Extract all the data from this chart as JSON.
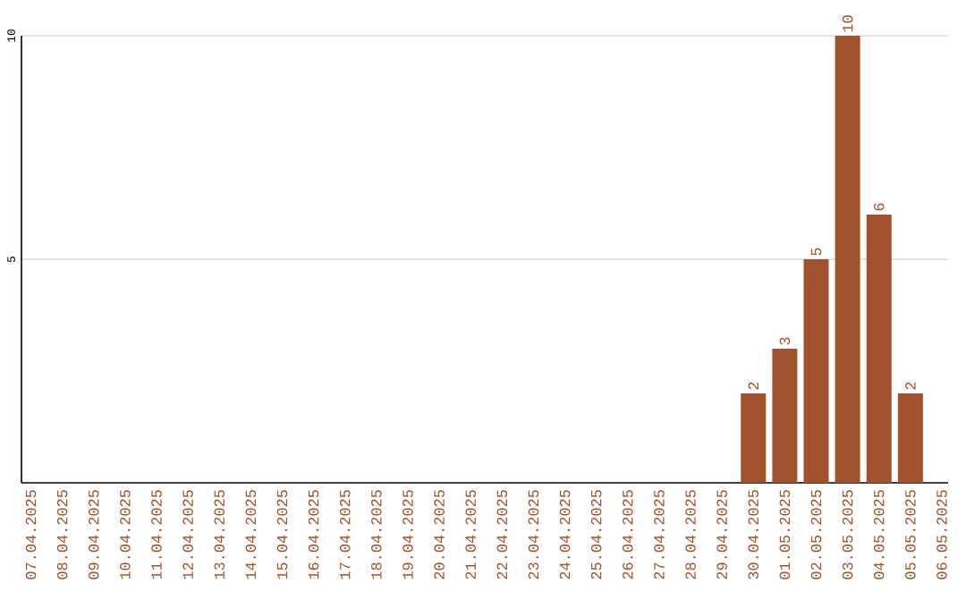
{
  "chart_data": {
    "type": "bar",
    "categories": [
      "07.04.2025",
      "08.04.2025",
      "09.04.2025",
      "10.04.2025",
      "11.04.2025",
      "12.04.2025",
      "13.04.2025",
      "14.04.2025",
      "15.04.2025",
      "16.04.2025",
      "17.04.2025",
      "18.04.2025",
      "19.04.2025",
      "20.04.2025",
      "21.04.2025",
      "22.04.2025",
      "23.04.2025",
      "24.04.2025",
      "25.04.2025",
      "26.04.2025",
      "27.04.2025",
      "28.04.2025",
      "29.04.2025",
      "30.04.2025",
      "01.05.2025",
      "02.05.2025",
      "03.05.2025",
      "04.05.2025",
      "05.05.2025",
      "06.05.2025"
    ],
    "values": [
      0,
      0,
      0,
      0,
      0,
      0,
      0,
      0,
      0,
      0,
      0,
      0,
      0,
      0,
      0,
      0,
      0,
      0,
      0,
      0,
      0,
      0,
      0,
      2,
      3,
      5,
      10,
      6,
      2,
      0
    ],
    "value_labels": [
      null,
      null,
      null,
      null,
      null,
      null,
      null,
      null,
      null,
      null,
      null,
      null,
      null,
      null,
      null,
      null,
      null,
      null,
      null,
      null,
      null,
      null,
      null,
      "2",
      "3",
      "5",
      "10",
      "6",
      "2",
      null
    ],
    "color": "#a0522d",
    "ylim": [
      0,
      10
    ],
    "yticks": [
      5,
      10
    ],
    "grid": "y"
  }
}
